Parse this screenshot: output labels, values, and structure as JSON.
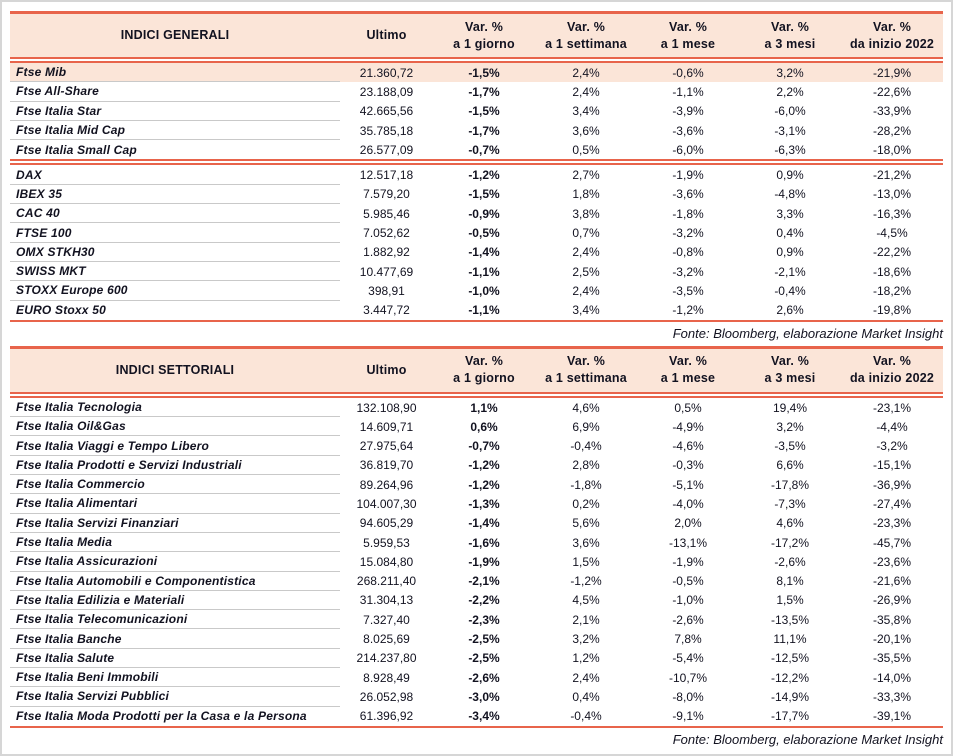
{
  "colors": {
    "accent_line": "#E8644B",
    "header_bg": "#FBE5D8",
    "highlight_row_bg": "#FBE5D8",
    "row_separator": "#C9C9C9",
    "text": "#121220"
  },
  "tables": [
    {
      "title": "INDICI GENERALI",
      "ultimo_label": "Ultimo",
      "columns": [
        {
          "l1": "Var. %",
          "l2": "a 1 giorno"
        },
        {
          "l1": "Var. %",
          "l2": "a 1 settimana"
        },
        {
          "l1": "Var. %",
          "l2": "a 1 mese"
        },
        {
          "l1": "Var. %",
          "l2": "a 3 mesi"
        },
        {
          "l1": "Var. %",
          "l2": "da inizio 2022"
        }
      ],
      "source": "Fonte: Bloomberg, elaborazione Market Insight",
      "groups": [
        {
          "rows": [
            {
              "name": "Ftse Mib",
              "ultimo": "21.360,72",
              "d1": "-1,5%",
              "w1": "2,4%",
              "m1": "-0,6%",
              "m3": "3,2%",
              "ytd": "-21,9%",
              "highlight": true
            },
            {
              "name": "Ftse All-Share",
              "ultimo": "23.188,09",
              "d1": "-1,7%",
              "w1": "2,4%",
              "m1": "-1,1%",
              "m3": "2,2%",
              "ytd": "-22,6%"
            },
            {
              "name": "Ftse Italia Star",
              "ultimo": "42.665,56",
              "d1": "-1,5%",
              "w1": "3,4%",
              "m1": "-3,9%",
              "m3": "-6,0%",
              "ytd": "-33,9%"
            },
            {
              "name": "Ftse Italia Mid Cap",
              "ultimo": "35.785,18",
              "d1": "-1,7%",
              "w1": "3,6%",
              "m1": "-3,6%",
              "m3": "-3,1%",
              "ytd": "-28,2%"
            },
            {
              "name": "Ftse Italia Small Cap",
              "ultimo": "26.577,09",
              "d1": "-0,7%",
              "w1": "0,5%",
              "m1": "-6,0%",
              "m3": "-6,3%",
              "ytd": "-18,0%"
            }
          ]
        },
        {
          "rows": [
            {
              "name": "DAX",
              "ultimo": "12.517,18",
              "d1": "-1,2%",
              "w1": "2,7%",
              "m1": "-1,9%",
              "m3": "0,9%",
              "ytd": "-21,2%"
            },
            {
              "name": "IBEX 35",
              "ultimo": "7.579,20",
              "d1": "-1,5%",
              "w1": "1,8%",
              "m1": "-3,6%",
              "m3": "-4,8%",
              "ytd": "-13,0%"
            },
            {
              "name": "CAC 40",
              "ultimo": "5.985,46",
              "d1": "-0,9%",
              "w1": "3,8%",
              "m1": "-1,8%",
              "m3": "3,3%",
              "ytd": "-16,3%"
            },
            {
              "name": "FTSE 100",
              "ultimo": "7.052,62",
              "d1": "-0,5%",
              "w1": "0,7%",
              "m1": "-3,2%",
              "m3": "0,4%",
              "ytd": "-4,5%"
            },
            {
              "name": "OMX STKH30",
              "ultimo": "1.882,92",
              "d1": "-1,4%",
              "w1": "2,4%",
              "m1": "-0,8%",
              "m3": "0,9%",
              "ytd": "-22,2%"
            },
            {
              "name": "SWISS MKT",
              "ultimo": "10.477,69",
              "d1": "-1,1%",
              "w1": "2,5%",
              "m1": "-3,2%",
              "m3": "-2,1%",
              "ytd": "-18,6%"
            },
            {
              "name": "STOXX Europe 600",
              "ultimo": "398,91",
              "d1": "-1,0%",
              "w1": "2,4%",
              "m1": "-3,5%",
              "m3": "-0,4%",
              "ytd": "-18,2%"
            },
            {
              "name": "EURO Stoxx 50",
              "ultimo": "3.447,72",
              "d1": "-1,1%",
              "w1": "3,4%",
              "m1": "-1,2%",
              "m3": "2,6%",
              "ytd": "-19,8%"
            }
          ]
        }
      ]
    },
    {
      "title": "INDICI SETTORIALI",
      "ultimo_label": "Ultimo",
      "columns": [
        {
          "l1": "Var. %",
          "l2": "a 1 giorno"
        },
        {
          "l1": "Var. %",
          "l2": "a 1 settimana"
        },
        {
          "l1": "Var. %",
          "l2": "a 1 mese"
        },
        {
          "l1": "Var. %",
          "l2": "a 3 mesi"
        },
        {
          "l1": "Var. %",
          "l2": "da inizio 2022"
        }
      ],
      "source": "Fonte: Bloomberg, elaborazione Market Insight",
      "groups": [
        {
          "rows": [
            {
              "name": "Ftse Italia Tecnologia",
              "ultimo": "132.108,90",
              "d1": "1,1%",
              "w1": "4,6%",
              "m1": "0,5%",
              "m3": "19,4%",
              "ytd": "-23,1%"
            },
            {
              "name": "Ftse Italia Oil&Gas",
              "ultimo": "14.609,71",
              "d1": "0,6%",
              "w1": "6,9%",
              "m1": "-4,9%",
              "m3": "3,2%",
              "ytd": "-4,4%"
            },
            {
              "name": "Ftse Italia Viaggi e Tempo Libero",
              "ultimo": "27.975,64",
              "d1": "-0,7%",
              "w1": "-0,4%",
              "m1": "-4,6%",
              "m3": "-3,5%",
              "ytd": "-3,2%"
            },
            {
              "name": "Ftse Italia Prodotti e Servizi Industriali",
              "ultimo": "36.819,70",
              "d1": "-1,2%",
              "w1": "2,8%",
              "m1": "-0,3%",
              "m3": "6,6%",
              "ytd": "-15,1%"
            },
            {
              "name": "Ftse Italia Commercio",
              "ultimo": "89.264,96",
              "d1": "-1,2%",
              "w1": "-1,8%",
              "m1": "-5,1%",
              "m3": "-17,8%",
              "ytd": "-36,9%"
            },
            {
              "name": "Ftse Italia Alimentari",
              "ultimo": "104.007,30",
              "d1": "-1,3%",
              "w1": "0,2%",
              "m1": "-4,0%",
              "m3": "-7,3%",
              "ytd": "-27,4%"
            },
            {
              "name": "Ftse Italia Servizi Finanziari",
              "ultimo": "94.605,29",
              "d1": "-1,4%",
              "w1": "5,6%",
              "m1": "2,0%",
              "m3": "4,6%",
              "ytd": "-23,3%"
            },
            {
              "name": "Ftse Italia Media",
              "ultimo": "5.959,53",
              "d1": "-1,6%",
              "w1": "3,6%",
              "m1": "-13,1%",
              "m3": "-17,2%",
              "ytd": "-45,7%"
            },
            {
              "name": "Ftse Italia Assicurazioni",
              "ultimo": "15.084,80",
              "d1": "-1,9%",
              "w1": "1,5%",
              "m1": "-1,9%",
              "m3": "-2,6%",
              "ytd": "-23,6%"
            },
            {
              "name": "Ftse Italia Automobili e Componentistica",
              "ultimo": "268.211,40",
              "d1": "-2,1%",
              "w1": "-1,2%",
              "m1": "-0,5%",
              "m3": "8,1%",
              "ytd": "-21,6%"
            },
            {
              "name": "Ftse Italia Edilizia e Materiali",
              "ultimo": "31.304,13",
              "d1": "-2,2%",
              "w1": "4,5%",
              "m1": "-1,0%",
              "m3": "1,5%",
              "ytd": "-26,9%"
            },
            {
              "name": "Ftse Italia Telecomunicazioni",
              "ultimo": "7.327,40",
              "d1": "-2,3%",
              "w1": "2,1%",
              "m1": "-2,6%",
              "m3": "-13,5%",
              "ytd": "-35,8%"
            },
            {
              "name": "Ftse Italia Banche",
              "ultimo": "8.025,69",
              "d1": "-2,5%",
              "w1": "3,2%",
              "m1": "7,8%",
              "m3": "11,1%",
              "ytd": "-20,1%"
            },
            {
              "name": "Ftse Italia Salute",
              "ultimo": "214.237,80",
              "d1": "-2,5%",
              "w1": "1,2%",
              "m1": "-5,4%",
              "m3": "-12,5%",
              "ytd": "-35,5%"
            },
            {
              "name": "Ftse Italia Beni Immobili",
              "ultimo": "8.928,49",
              "d1": "-2,6%",
              "w1": "2,4%",
              "m1": "-10,7%",
              "m3": "-12,2%",
              "ytd": "-14,0%"
            },
            {
              "name": "Ftse Italia Servizi Pubblici",
              "ultimo": "26.052,98",
              "d1": "-3,0%",
              "w1": "0,4%",
              "m1": "-8,0%",
              "m3": "-14,9%",
              "ytd": "-33,3%"
            },
            {
              "name": "Ftse Italia Moda Prodotti per la Casa e la Persona",
              "ultimo": "61.396,92",
              "d1": "-3,4%",
              "w1": "-0,4%",
              "m1": "-9,1%",
              "m3": "-17,7%",
              "ytd": "-39,1%"
            }
          ]
        }
      ]
    }
  ]
}
